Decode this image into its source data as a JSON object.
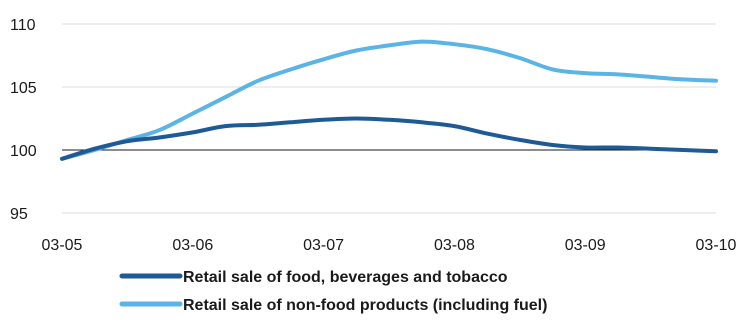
{
  "chart_data": {
    "type": "line",
    "title": "",
    "xlabel": "",
    "ylabel": "",
    "grid": "horizontal",
    "legend_position": "bottom",
    "x_ticks": [
      "03-05",
      "03-06",
      "03-07",
      "03-08",
      "03-09",
      "03-10"
    ],
    "y_ticks": [
      "95",
      "100",
      "105",
      "110"
    ],
    "ylim": [
      95,
      110
    ],
    "baseline": 100,
    "x": [
      "03-05",
      "06-05",
      "09-05",
      "12-05",
      "03-06",
      "06-06",
      "09-06",
      "12-06",
      "03-07",
      "06-07",
      "09-07",
      "12-07",
      "03-08",
      "06-08",
      "09-08",
      "12-08",
      "03-09",
      "06-09",
      "09-09",
      "12-09",
      "03-10"
    ],
    "series": [
      {
        "name": "Retail sale of food, beverages and tobacco",
        "color": "#1e5a96",
        "values": [
          99.3,
          100.1,
          100.7,
          101.0,
          101.4,
          101.9,
          102.0,
          102.2,
          102.4,
          102.5,
          102.4,
          102.2,
          101.9,
          101.3,
          100.8,
          100.4,
          100.2,
          100.2,
          100.1,
          100.0,
          99.9
        ]
      },
      {
        "name": "Retail sale of non-food products (including fuel)",
        "color": "#5ab4e6",
        "values": [
          99.3,
          100.0,
          100.8,
          101.6,
          102.9,
          104.2,
          105.5,
          106.4,
          107.2,
          107.9,
          108.3,
          108.6,
          108.4,
          108.0,
          107.3,
          106.4,
          106.1,
          106.0,
          105.8,
          105.6,
          105.5
        ]
      }
    ]
  }
}
